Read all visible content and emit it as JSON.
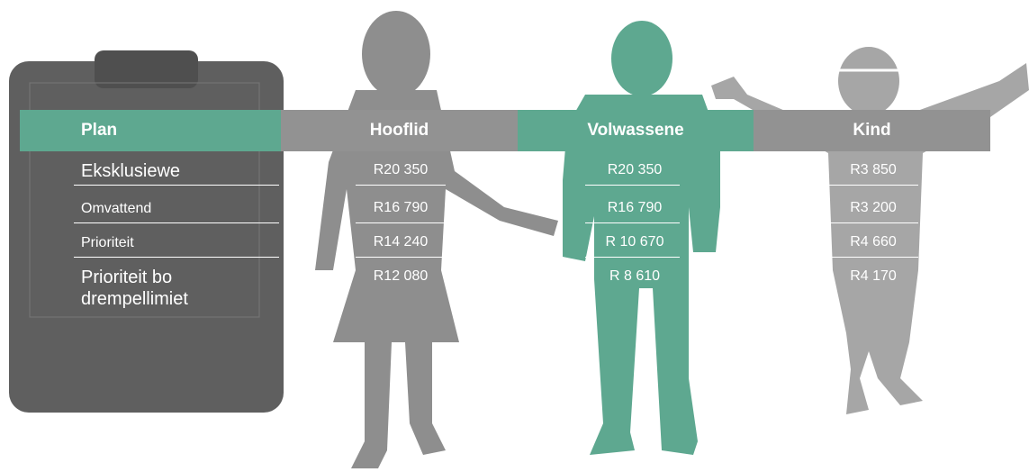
{
  "table": {
    "headers": [
      "Plan",
      "Hooflid",
      "Volwassene",
      "Kind"
    ],
    "rows": [
      [
        "Eksklusiewe",
        "R20 350",
        "R20 350",
        "R3 850"
      ],
      [
        "Omvattend",
        "R16 790",
        "R16 790",
        "R3 200"
      ],
      [
        "Prioriteit",
        "R14 240",
        "R 10 670",
        "R4 660"
      ],
      [
        "Prioriteit bo drempellimiet",
        "R12 080",
        "R 8 610",
        "R4 170"
      ]
    ]
  }
}
